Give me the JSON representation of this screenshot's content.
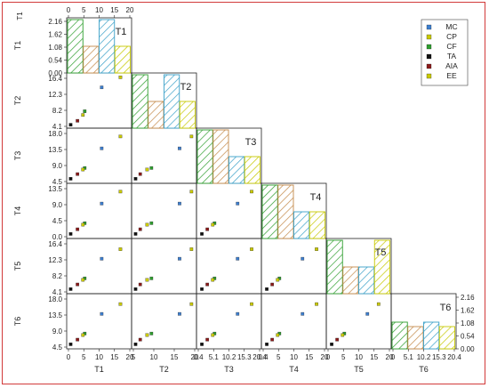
{
  "chart_data": {
    "type": "scatter",
    "variables": [
      "T1",
      "T2",
      "T3",
      "T4",
      "T5",
      "T6"
    ],
    "diagonal_histograms": {
      "T1": [
        2.16,
        1.08,
        2.16,
        1.08
      ],
      "T2": [
        2.16,
        1.08,
        2.16,
        1.08
      ],
      "T3": [
        2.16,
        2.16,
        1.08,
        1.08
      ],
      "T4": [
        2.16,
        2.16,
        1.08,
        1.08
      ],
      "T5": [
        2.16,
        1.08,
        1.08,
        2.16
      ],
      "T6": [
        1.08,
        0.9,
        1.08,
        0.9
      ]
    },
    "histogram_fill": [
      "#2e9e2e",
      "#c48a4a",
      "#3aa0c8",
      "#c6c800"
    ],
    "series": [
      {
        "name": "MC",
        "color": "#3d7fd0",
        "marker": "square",
        "values": [
          12.7,
          16.3,
          14.4,
          14.4,
          14.4,
          14.4
        ]
      },
      {
        "name": "CP",
        "color": "#c9c900",
        "marker": "square",
        "values": [
          17.9,
          19.6,
          18.3,
          18.3,
          17.5,
          17.6
        ]
      },
      {
        "name": "CF",
        "color": "#2e9e2e",
        "marker": "square",
        "values": [
          8.0,
          8.5,
          8.0,
          8.0,
          8.0,
          8.0
        ]
      },
      {
        "name": "TA",
        "color": "#111111",
        "marker": "square",
        "values": [
          4.1,
          4.1,
          4.5,
          4.5,
          4.5,
          4.5
        ]
      },
      {
        "name": "AIA",
        "color": "#8b1a1a",
        "marker": "square",
        "values": [
          6.0,
          5.4,
          6.0,
          6.0,
          6.0,
          6.0
        ]
      },
      {
        "name": "EE",
        "color": "#c9c900",
        "marker": "square",
        "values": [
          7.5,
          7.3,
          7.5,
          7.5,
          7.5,
          7.5
        ]
      }
    ],
    "bottom_tick_labels": {
      "T1": [
        "0",
        "5",
        "10",
        "15",
        "20"
      ],
      "T2": [
        "5",
        "10",
        "15",
        "20"
      ],
      "T3": [
        "0.4",
        "5.1",
        "10.2",
        "15.3",
        "20.4"
      ],
      "T4": [
        "0.4",
        "5",
        "10",
        "15",
        "20"
      ],
      "T5": [
        "0",
        "5",
        "10",
        "15",
        "20"
      ],
      "T6": [
        "0",
        "5.1",
        "10.2",
        "15.3",
        "20.4"
      ]
    },
    "top_tick_labels": [
      "0",
      "5",
      "10",
      "15",
      "20"
    ],
    "left_tick_labels": {
      "T1": [
        "2.16",
        "1.62",
        "1.08",
        "0.54",
        "0.00"
      ],
      "T2": [
        "16.4",
        "12.3",
        "8.2",
        "4.1"
      ],
      "T3": [
        "18.0",
        "13.5",
        "9.0",
        "4.5"
      ],
      "T4": [
        "13.5",
        "9.0",
        "4.5",
        "0.0"
      ],
      "T5": [
        "16.4",
        "12.3",
        "8.2",
        "4.1"
      ],
      "T6": [
        "18.0",
        "13.5",
        "9.0",
        "4.5"
      ]
    },
    "right_tick_labels": [
      "2.16",
      "1.62",
      "1.08",
      "0.54",
      "0.00"
    ],
    "axis_labels": [
      "T1",
      "T2",
      "T3",
      "T4",
      "T5",
      "T6"
    ],
    "legend_placement": "top-right"
  }
}
